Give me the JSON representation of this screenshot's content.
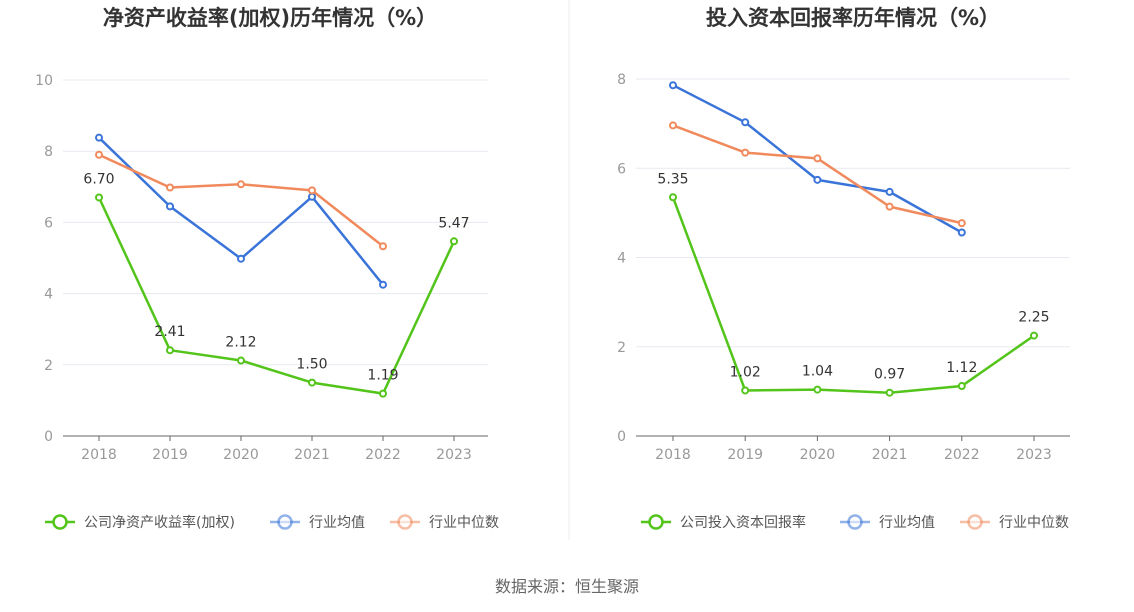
{
  "chart_data": [
    {
      "type": "line",
      "title": "净资产收益率(加权)历年情况（%）",
      "categories": [
        "2018",
        "2019",
        "2020",
        "2021",
        "2022",
        "2023"
      ],
      "ylim": [
        0,
        10
      ],
      "yticks": [
        0,
        2,
        4,
        6,
        8,
        10
      ],
      "grid": true,
      "legend_position": "bottom",
      "series": [
        {
          "name": "公司净资产收益率(加权)",
          "color": "#52c41a",
          "values": [
            6.7,
            2.41,
            2.12,
            1.5,
            1.19,
            5.47
          ],
          "labels": [
            "6.70",
            "2.41",
            "2.12",
            "1.50",
            "1.19",
            "5.47"
          ]
        },
        {
          "name": "行业均值",
          "color": "#3a74d9",
          "values": [
            8.38,
            6.45,
            4.98,
            6.72,
            4.25,
            null
          ]
        },
        {
          "name": "行业中位数",
          "color": "#f08a5d",
          "values": [
            7.9,
            6.98,
            7.07,
            6.9,
            5.33,
            null
          ]
        }
      ]
    },
    {
      "type": "line",
      "title": "投入资本回报率历年情况（%）",
      "categories": [
        "2018",
        "2019",
        "2020",
        "2021",
        "2022",
        "2023"
      ],
      "ylim": [
        0,
        8
      ],
      "yticks": [
        0,
        2,
        4,
        6,
        8
      ],
      "grid": true,
      "legend_position": "bottom",
      "series": [
        {
          "name": "公司投入资本回报率",
          "color": "#52c41a",
          "values": [
            5.35,
            1.02,
            1.04,
            0.97,
            1.12,
            2.25
          ],
          "labels": [
            "5.35",
            "1.02",
            "1.04",
            "0.97",
            "1.12",
            "2.25"
          ]
        },
        {
          "name": "行业均值",
          "color": "#3a74d9",
          "values": [
            7.86,
            7.03,
            5.74,
            5.47,
            4.56,
            null
          ]
        },
        {
          "name": "行业中位数",
          "color": "#f08a5d",
          "values": [
            6.96,
            6.35,
            6.22,
            5.14,
            4.77,
            null
          ]
        }
      ]
    }
  ],
  "source": "数据来源：恒生聚源"
}
